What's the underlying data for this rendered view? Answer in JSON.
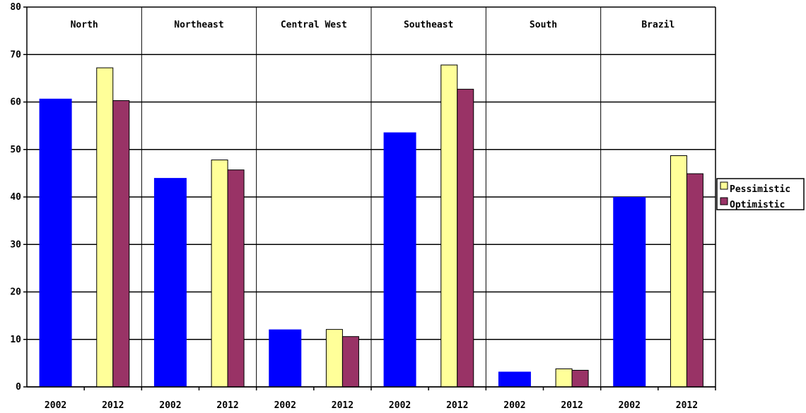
{
  "chart_data": {
    "type": "bar",
    "title": "",
    "xlabel": "",
    "ylabel": "",
    "ylim": [
      0,
      80
    ],
    "yticks": [
      0,
      10,
      20,
      30,
      40,
      50,
      60,
      70,
      80
    ],
    "grid": true,
    "legend_position": "right",
    "groups": [
      {
        "label": "North",
        "bars": [
          {
            "year": "2002",
            "values": [
              60.7
            ]
          },
          {
            "year": "2012",
            "values": [
              67.2,
              60.3
            ]
          }
        ]
      },
      {
        "label": "Northeast",
        "bars": [
          {
            "year": "2002",
            "values": [
              44.0
            ]
          },
          {
            "year": "2012",
            "values": [
              47.8,
              45.7
            ]
          }
        ]
      },
      {
        "label": "Central West",
        "bars": [
          {
            "year": "2002",
            "values": [
              12.1
            ]
          },
          {
            "year": "2012",
            "values": [
              12.1,
              10.6
            ]
          }
        ]
      },
      {
        "label": "Southeast",
        "bars": [
          {
            "year": "2002",
            "values": [
              53.6
            ]
          },
          {
            "year": "2012",
            "values": [
              67.8,
              62.7
            ]
          }
        ]
      },
      {
        "label": "South",
        "bars": [
          {
            "year": "2002",
            "values": [
              3.2
            ]
          },
          {
            "year": "2012",
            "values": [
              3.8,
              3.5
            ]
          }
        ]
      },
      {
        "label": "Brazil",
        "bars": [
          {
            "year": "2002",
            "values": [
              40.0
            ]
          },
          {
            "year": "2012",
            "values": [
              48.7,
              44.9
            ]
          }
        ]
      }
    ],
    "series_colors": {
      "2002": "#0000ff",
      "pessimistic": "#ffff99",
      "optimistic": "#993366"
    },
    "legend": [
      {
        "label": "Pessimistic",
        "color": "#ffff99"
      },
      {
        "label": "Optimistic",
        "color": "#993366"
      }
    ]
  }
}
